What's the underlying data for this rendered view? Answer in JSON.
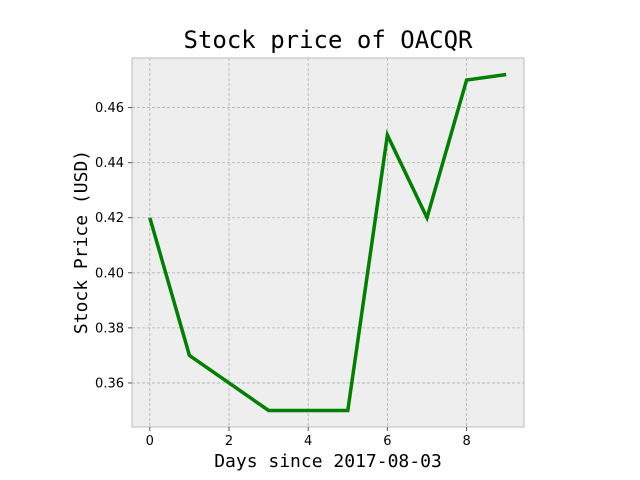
{
  "chart_data": {
    "type": "line",
    "title": "Stock price of OACQR",
    "xlabel": "Days since 2017-08-03",
    "ylabel": "Stock Price (USD)",
    "xlim": [
      -0.45,
      9.45
    ],
    "ylim": [
      0.344,
      0.478
    ],
    "xticks": [
      0,
      2,
      4,
      6,
      8
    ],
    "xtick_labels": [
      "0",
      "2",
      "4",
      "6",
      "8"
    ],
    "yticks": [
      0.36,
      0.38,
      0.4,
      0.42,
      0.44,
      0.46
    ],
    "ytick_labels": [
      "0.36",
      "0.38",
      "0.40",
      "0.42",
      "0.44",
      "0.46"
    ],
    "grid": true,
    "background_color": "#eeeeee",
    "series": [
      {
        "color": "#008000",
        "x": [
          0,
          1,
          2,
          3,
          4,
          5,
          6,
          7,
          8,
          9
        ],
        "y": [
          0.42,
          0.37,
          0.36,
          0.35,
          0.35,
          0.35,
          0.45,
          0.42,
          0.47,
          0.472
        ]
      }
    ]
  }
}
